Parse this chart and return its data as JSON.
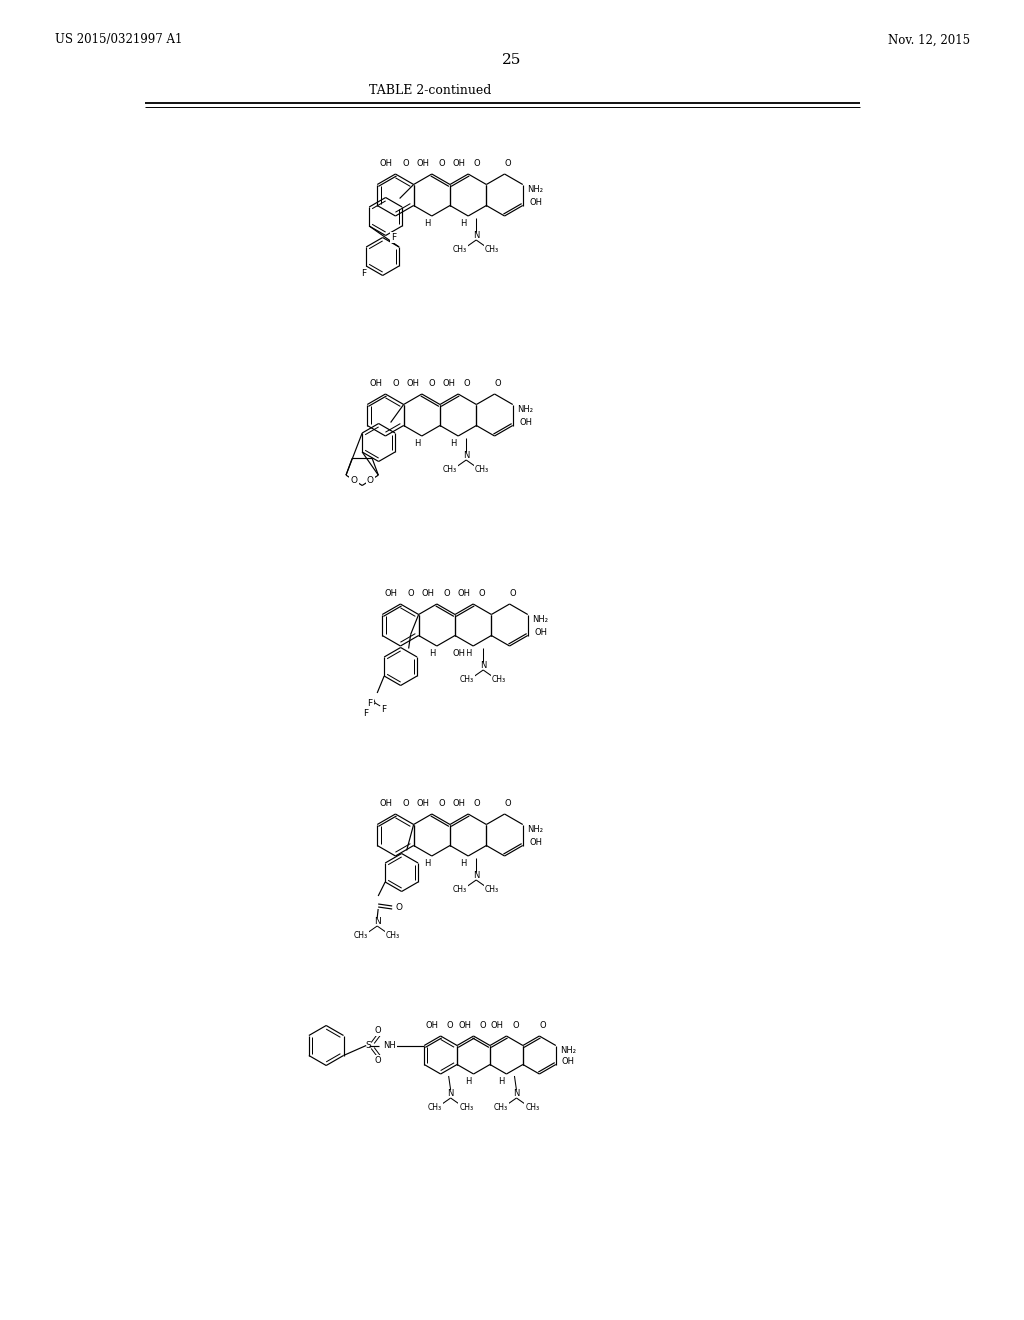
{
  "page_width": 10.24,
  "page_height": 13.2,
  "bg_color": "#ffffff",
  "header_left": "US 2015/0321997 A1",
  "header_right": "Nov. 12, 2015",
  "page_number": "25",
  "table_title": "TABLE 2-continued"
}
